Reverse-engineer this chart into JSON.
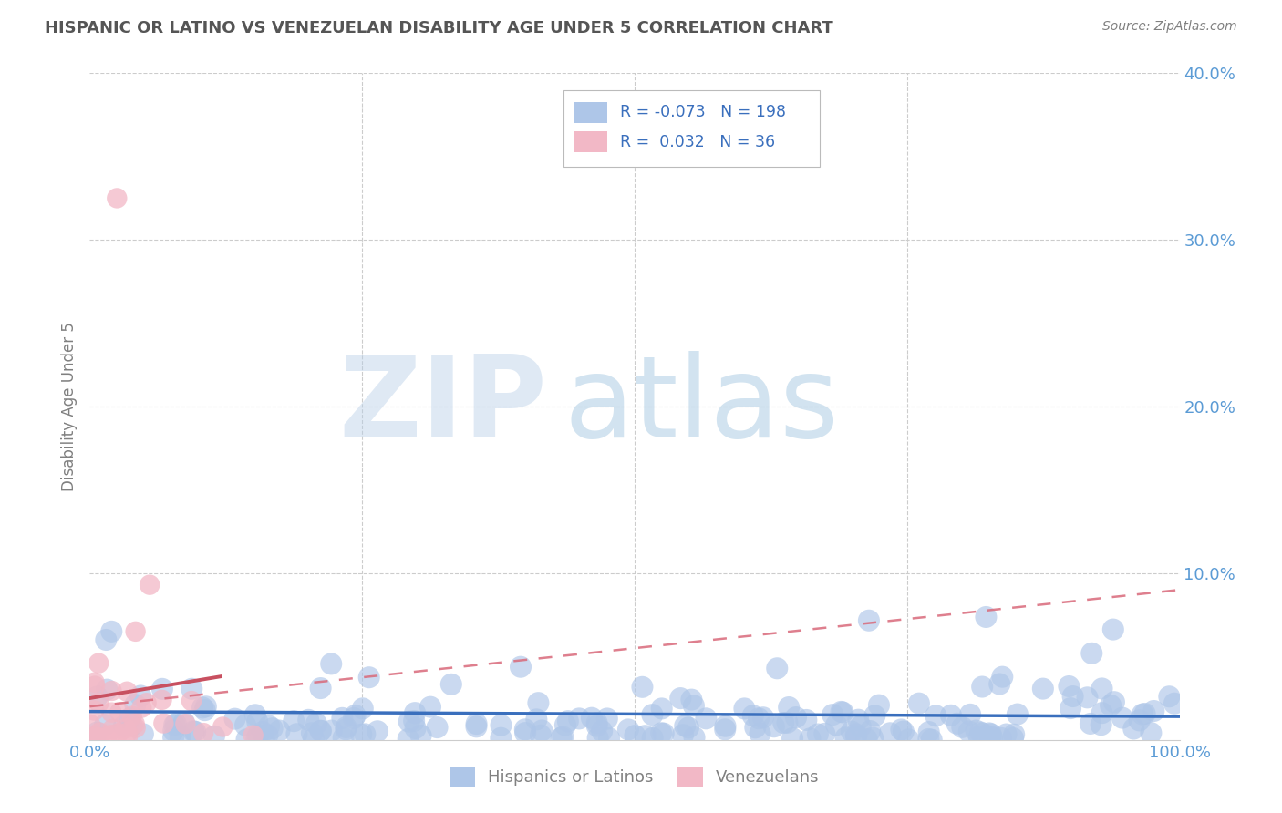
{
  "title": "HISPANIC OR LATINO VS VENEZUELAN DISABILITY AGE UNDER 5 CORRELATION CHART",
  "source_text": "Source: ZipAtlas.com",
  "ylabel": "Disability Age Under 5",
  "xlim": [
    0,
    1.0
  ],
  "ylim": [
    0,
    0.4
  ],
  "blue_R": -0.073,
  "blue_N": 198,
  "pink_R": 0.032,
  "pink_N": 36,
  "blue_color": "#aec6e8",
  "pink_color": "#f2b8c6",
  "blue_line_color": "#3a6fbd",
  "pink_line_color": "#d9697a",
  "legend_label_blue": "Hispanics or Latinos",
  "legend_label_pink": "Venezuelans",
  "watermark_zip": "ZIP",
  "watermark_atlas": "atlas",
  "background_color": "#ffffff",
  "grid_color": "#cccccc",
  "title_color": "#555555",
  "tick_color": "#5b9bd5",
  "ylabel_color": "#808080",
  "source_color": "#808080"
}
